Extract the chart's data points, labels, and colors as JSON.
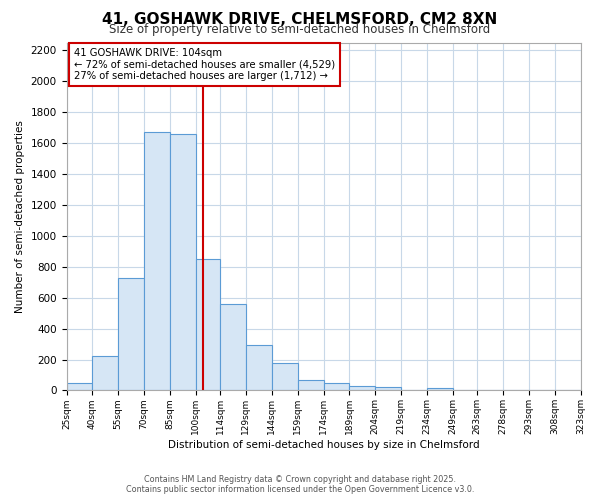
{
  "title1": "41, GOSHAWK DRIVE, CHELMSFORD, CM2 8XN",
  "title2": "Size of property relative to semi-detached houses in Chelmsford",
  "xlabel": "Distribution of semi-detached houses by size in Chelmsford",
  "ylabel": "Number of semi-detached properties",
  "bin_edges": [
    25,
    40,
    55,
    70,
    85,
    100,
    114,
    129,
    144,
    159,
    174,
    189,
    204,
    219,
    234,
    249,
    263,
    278,
    293,
    308,
    323
  ],
  "bar_heights": [
    45,
    225,
    730,
    1670,
    1660,
    850,
    560,
    295,
    175,
    70,
    45,
    30,
    20,
    0,
    15,
    0,
    0,
    0,
    0,
    0
  ],
  "bar_color": "#d6e6f5",
  "bar_edgecolor": "#5b9bd5",
  "vline_x": 104,
  "vline_color": "#cc0000",
  "annotation_title": "41 GOSHAWK DRIVE: 104sqm",
  "annotation_line1": "← 72% of semi-detached houses are smaller (4,529)",
  "annotation_line2": "27% of semi-detached houses are larger (1,712) →",
  "annotation_box_facecolor": "#ffffff",
  "annotation_box_edgecolor": "#cc0000",
  "ylim": [
    0,
    2250
  ],
  "yticks": [
    0,
    200,
    400,
    600,
    800,
    1000,
    1200,
    1400,
    1600,
    1800,
    2000,
    2200
  ],
  "background_color": "#ffffff",
  "grid_color": "#c8d8e8",
  "footer1": "Contains HM Land Registry data © Crown copyright and database right 2025.",
  "footer2": "Contains public sector information licensed under the Open Government Licence v3.0."
}
